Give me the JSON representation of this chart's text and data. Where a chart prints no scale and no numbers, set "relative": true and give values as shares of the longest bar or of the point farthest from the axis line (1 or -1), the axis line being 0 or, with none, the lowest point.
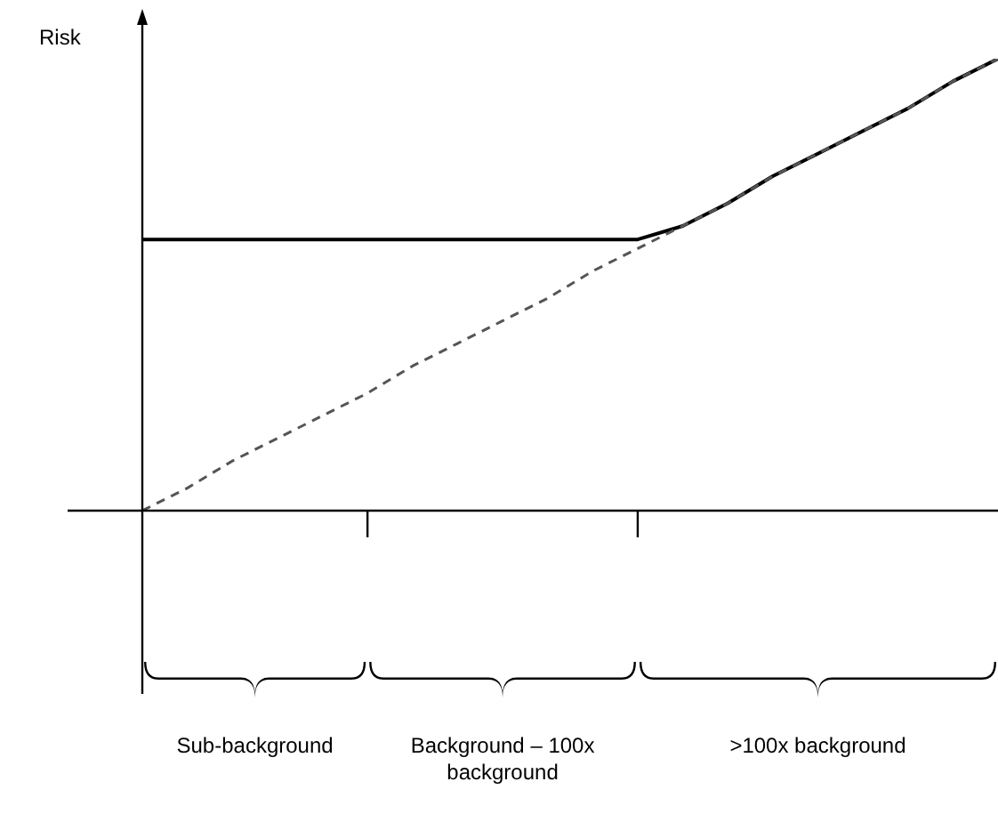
{
  "chart_data": {
    "type": "line",
    "relative": true,
    "ylabel": "Risk",
    "categories": [
      null,
      null,
      null,
      null,
      null,
      null,
      null,
      null,
      null,
      null,
      null,
      null,
      null,
      null,
      null,
      null,
      null,
      null,
      null,
      null
    ],
    "series": [
      {
        "color": "#000000",
        "line_style": "solid",
        "values": [
          0.6,
          0.6,
          0.6,
          0.6,
          0.6,
          0.6,
          0.6,
          0.6,
          0.6,
          0.6,
          0.6,
          0.6,
          0.63,
          0.68,
          0.74,
          0.79,
          0.84,
          0.89,
          0.95,
          1
        ]
      },
      {
        "color": "#555555",
        "line_style": "dashed",
        "values": [
          0,
          0.05,
          0.11,
          0.16,
          0.21,
          0.26,
          0.32,
          0.37,
          0.42,
          0.47,
          0.53,
          0.58,
          0.63,
          0.68,
          0.74,
          0.79,
          0.84,
          0.89,
          0.95,
          1
        ]
      }
    ],
    "annotations": [
      "Sub-background",
      "Background – 100x background",
      ">100x background"
    ],
    "grid": false,
    "legend": false,
    "marker": "none"
  }
}
